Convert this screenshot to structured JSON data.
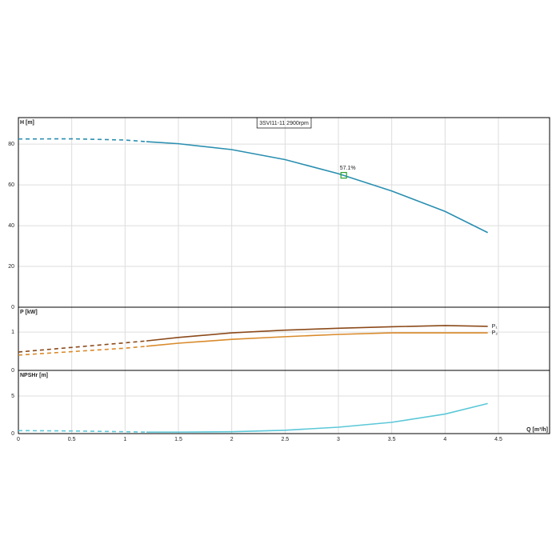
{
  "chart_data": [
    {
      "type": "line",
      "title": "3SVI11-11 2900rpm",
      "ylabel": "H [m]",
      "x": [
        0,
        0.5,
        1,
        1.2,
        1.5,
        2,
        2.5,
        3,
        3.5,
        4,
        4.4
      ],
      "series": [
        {
          "color": "#2a8fb0",
          "dash": true,
          "values": [
            82.5,
            82.6,
            82,
            81.2,
            null,
            null,
            null,
            null,
            null,
            null,
            null
          ]
        },
        {
          "color": "#2a8fb0",
          "values": [
            null,
            null,
            null,
            81.2,
            80.2,
            77.3,
            72.4,
            65.5,
            57,
            47,
            36.6
          ]
        }
      ],
      "annotations": [
        {
          "text": "57.1%",
          "x": 3.05,
          "y": 64.7,
          "color": "#2ca02c"
        }
      ],
      "xlim": [
        0,
        4.98
      ],
      "xticks": [
        0,
        0.5,
        1,
        1.5,
        2,
        2.5,
        3,
        3.5,
        4,
        4.5
      ],
      "ylim": [
        0,
        93
      ],
      "yticks": [
        0,
        20,
        40,
        60,
        80
      ],
      "grid": true
    },
    {
      "type": "line",
      "ylabel": "P [kW]",
      "x": [
        0,
        0.5,
        1,
        1.2,
        1.5,
        2,
        2.5,
        3,
        3.5,
        4,
        4.4
      ],
      "series": [
        {
          "color": "#8b4a1a",
          "dash": true,
          "values": [
            0.48,
            0.6,
            0.72,
            0.77,
            null,
            null,
            null,
            null,
            null,
            null,
            null
          ]
        },
        {
          "name": "P₁",
          "color": "#8b4a1a",
          "values": [
            null,
            null,
            null,
            0.77,
            0.86,
            0.98,
            1.05,
            1.1,
            1.14,
            1.17,
            1.15
          ]
        },
        {
          "color": "#d98a2a",
          "dash": true,
          "values": [
            0.4,
            0.49,
            0.58,
            0.63,
            null,
            null,
            null,
            null,
            null,
            null,
            null
          ]
        },
        {
          "name": "P₂",
          "color": "#d98a2a",
          "values": [
            null,
            null,
            null,
            0.63,
            0.71,
            0.81,
            0.88,
            0.94,
            0.98,
            0.98,
            0.98
          ]
        }
      ],
      "xlim": [
        0,
        4.98
      ],
      "xticks": [
        0,
        0.5,
        1,
        1.5,
        2,
        2.5,
        3,
        3.5,
        4,
        4.5
      ],
      "ylim": [
        0,
        1.65
      ],
      "yticks": [
        0,
        1
      ],
      "grid": true
    },
    {
      "type": "line",
      "ylabel": "NPSHr [m]",
      "xlabel": "Q [m³/h]",
      "x": [
        0,
        0.5,
        1,
        1.2,
        1.5,
        2,
        2.5,
        3,
        3.5,
        4,
        4.4
      ],
      "series": [
        {
          "color": "#5bc8d8",
          "dash": true,
          "values": [
            0.4,
            0.35,
            0.25,
            0.2,
            null,
            null,
            null,
            null,
            null,
            null,
            null
          ]
        },
        {
          "color": "#5bc8d8",
          "values": [
            null,
            null,
            null,
            0.2,
            0.2,
            0.25,
            0.45,
            0.85,
            1.5,
            2.6,
            4.0
          ]
        }
      ],
      "xlim": [
        0,
        4.98
      ],
      "xticks": [
        0,
        0.5,
        1,
        1.5,
        2,
        2.5,
        3,
        3.5,
        4,
        4.5
      ],
      "ylim": [
        0,
        8.4
      ],
      "yticks": [
        0,
        5
      ],
      "grid": true
    }
  ]
}
